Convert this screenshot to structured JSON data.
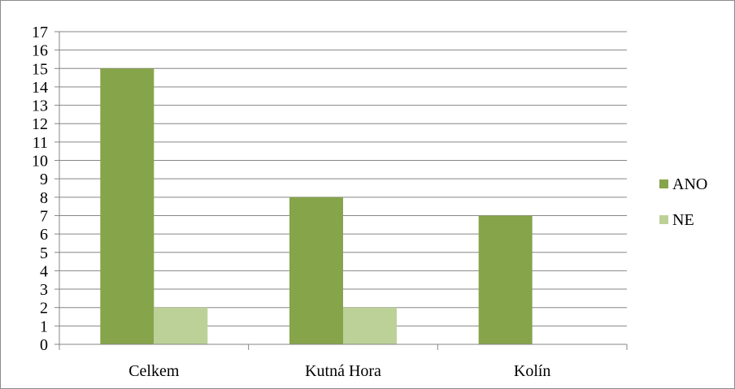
{
  "chart_data": {
    "type": "bar",
    "categories": [
      "Celkem",
      "Kutná Hora",
      "Kolín"
    ],
    "series": [
      {
        "name": "ANO",
        "color": "#86a44a",
        "values": [
          15,
          8,
          7
        ]
      },
      {
        "name": "NE",
        "color": "#bcd198",
        "values": [
          2,
          2,
          0
        ]
      }
    ],
    "ylim": [
      0,
      17
    ],
    "yticks": [
      0,
      1,
      2,
      3,
      4,
      5,
      6,
      7,
      8,
      9,
      10,
      11,
      12,
      13,
      14,
      15,
      16,
      17
    ],
    "grid": true,
    "legend_position": "right"
  }
}
